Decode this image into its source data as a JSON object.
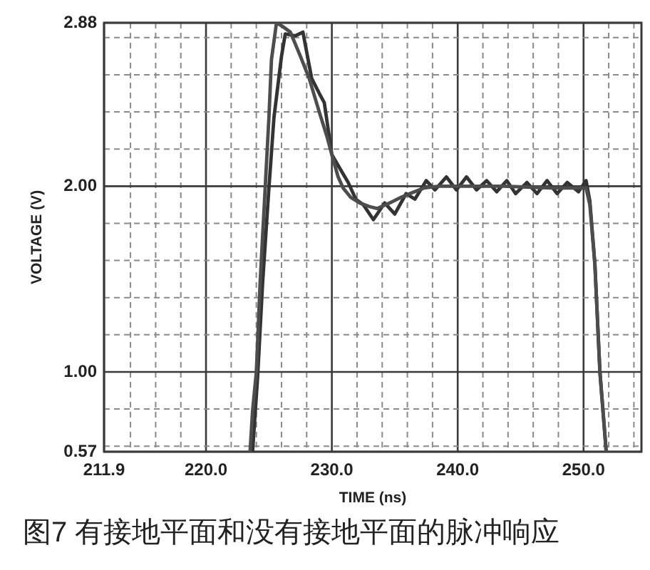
{
  "chart_data": {
    "type": "line",
    "xlabel": "TIME (ns)",
    "ylabel": "VOLTAGE (V)",
    "annotations": [
      "图7 有接地平面和没有接地平面的脉冲响应"
    ],
    "xlim": [
      211.9,
      254.6
    ],
    "xticks": [
      211.9,
      {
        "value": 214,
        "label": null
      },
      {
        "value": 216,
        "label": null
      },
      {
        "value": 218,
        "label": null
      },
      {
        "value": 220,
        "label": "220.0"
      },
      {
        "value": 222,
        "label": null
      },
      {
        "value": 224,
        "label": null
      },
      {
        "value": 226,
        "label": null
      },
      {
        "value": 228,
        "label": null
      },
      {
        "value": 230,
        "label": "230.0"
      },
      {
        "value": 232,
        "label": null
      },
      {
        "value": 234,
        "label": null
      },
      {
        "value": 236,
        "label": null
      },
      {
        "value": 238,
        "label": null
      },
      {
        "value": 240,
        "label": "240.0"
      },
      {
        "value": 242,
        "label": null
      },
      {
        "value": 244,
        "label": null
      },
      {
        "value": 246,
        "label": null
      },
      {
        "value": 248,
        "label": null
      },
      {
        "value": 250,
        "label": "250.0"
      },
      {
        "value": 252,
        "label": null
      },
      {
        "value": 254,
        "label": null
      }
    ],
    "ylim": [
      0.57,
      2.88
    ],
    "yticks": [
      0.57,
      {
        "value": 0.6,
        "label": null
      },
      {
        "value": 0.8,
        "label": null
      },
      {
        "value": 1,
        "label": "1.00"
      },
      {
        "value": 1.2,
        "label": null
      },
      {
        "value": 1.4,
        "label": null
      },
      {
        "value": 1.6,
        "label": null
      },
      {
        "value": 1.8,
        "label": null
      },
      {
        "value": 2,
        "label": "2.00"
      },
      {
        "value": 2.2,
        "label": null
      },
      {
        "value": 2.4,
        "label": null
      },
      {
        "value": 2.6,
        "label": null
      },
      {
        "value": 2.8,
        "label": null
      },
      2.88
    ],
    "grid": true,
    "series": [
      {
        "color": "#4d4d4d",
        "x": [
          223.5,
          223.7,
          224.0,
          224.3,
          224.6,
          225.0,
          225.2,
          225.6,
          226.1,
          226.7,
          227.5,
          228.2,
          229.0,
          229.6,
          230.0,
          230.5,
          230.9,
          231.5,
          232.2,
          233.0,
          233.6,
          234.6,
          235.5,
          236.2,
          237.3,
          238.5,
          240.0,
          243.7,
          247.5,
          250.2,
          250.5,
          250.9,
          251.3,
          251.8
        ],
        "values": [
          0.57,
          0.79,
          1.0,
          1.48,
          1.86,
          2.37,
          2.68,
          2.88,
          2.86,
          2.83,
          2.7,
          2.58,
          2.4,
          2.27,
          2.17,
          2.05,
          1.99,
          1.94,
          1.91,
          1.89,
          1.88,
          1.91,
          1.94,
          1.96,
          1.99,
          2.0,
          2.0,
          2.0,
          1.99,
          1.99,
          1.9,
          1.58,
          1.0,
          0.57
        ]
      },
      {
        "color": "#333333",
        "x": [
          223.7,
          224.1,
          224.5,
          225.0,
          225.4,
          226.0,
          226.3,
          227.1,
          227.7,
          228.4,
          229.0,
          229.4,
          230.0,
          230.6,
          231.3,
          231.9,
          232.5,
          233.3,
          234.2,
          235.0,
          235.9,
          236.6,
          237.5,
          238.2,
          239.1,
          239.9,
          240.7,
          241.5,
          242.3,
          243.1,
          243.9,
          244.6,
          245.5,
          246.3,
          247.1,
          247.9,
          248.7,
          249.6,
          250.2,
          250.5,
          250.9,
          251.3,
          251.8
        ],
        "values": [
          0.57,
          0.97,
          1.48,
          1.99,
          2.37,
          2.7,
          2.82,
          2.81,
          2.83,
          2.58,
          2.5,
          2.45,
          2.17,
          2.1,
          2.02,
          1.93,
          1.9,
          1.82,
          1.91,
          1.85,
          1.96,
          1.93,
          2.03,
          1.98,
          2.05,
          1.98,
          2.05,
          1.98,
          2.03,
          1.97,
          2.03,
          1.96,
          2.02,
          1.96,
          2.03,
          1.96,
          2.02,
          1.97,
          2.03,
          1.92,
          1.58,
          1.0,
          0.57
        ]
      }
    ]
  }
}
